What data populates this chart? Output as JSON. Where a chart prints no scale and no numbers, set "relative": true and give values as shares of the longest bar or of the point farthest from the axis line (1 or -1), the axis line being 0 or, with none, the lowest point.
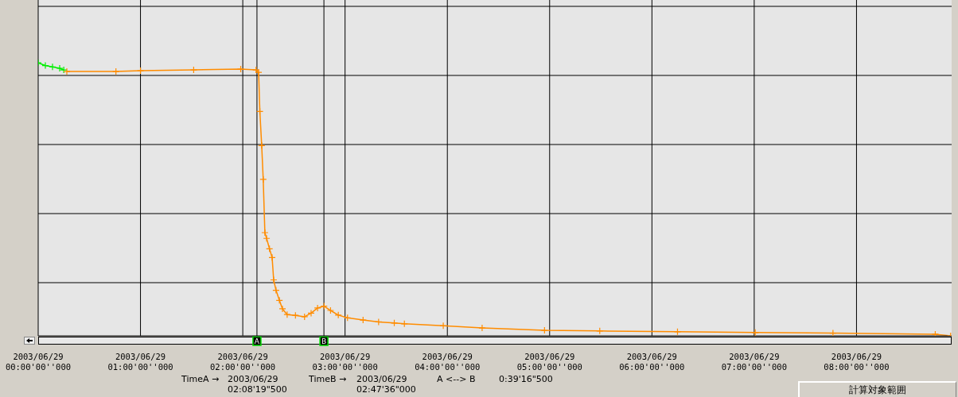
{
  "chart_data": {
    "type": "line",
    "relative": true,
    "xlim": [
      "2003-06-29T00:00",
      "2003-06-29T08:55:48"
    ],
    "xticks": [
      {
        "value": "2003-06-29T00:00",
        "label": "2003/06/29\n00:00'00''000"
      },
      {
        "value": "2003-06-29T01:00",
        "label": "2003/06/29\n01:00'00''000"
      },
      {
        "value": "2003-06-29T02:00",
        "label": "2003/06/29\n02:00'00''000"
      },
      {
        "value": "2003-06-29T03:00",
        "label": "2003/06/29\n03:00'00''000"
      },
      {
        "value": "2003-06-29T04:00",
        "label": "2003/06/29\n04:00'00''000"
      },
      {
        "value": "2003-06-29T05:00",
        "label": "2003/06/29\n05:00'00''000"
      },
      {
        "value": "2003-06-29T06:00",
        "label": "2003/06/29\n06:00'00''000"
      },
      {
        "value": "2003-06-29T07:00",
        "label": "2003/06/29\n07:00'00''000"
      },
      {
        "value": "2003-06-29T08:00",
        "label": "2003/06/29\n08:00'00''000"
      }
    ],
    "grid": true,
    "marker": "cross",
    "line_style": "solid",
    "series": [
      {
        "color": "#00ee00",
        "x": [
          "2003-06-29T00:00:00",
          "2003-06-29T00:04:12",
          "2003-06-29T00:08:24",
          "2003-06-29T00:12:36",
          "2003-06-29T00:15:00"
        ],
        "values": [
          1.0,
          0.99,
          0.985,
          0.98,
          0.974
        ]
      },
      {
        "color": "#ff8c00",
        "x": [
          "2003-06-29T00:16:48",
          "2003-06-29T00:45:36",
          "2003-06-29T01:00:00",
          "2003-06-29T01:31:12",
          "2003-06-29T01:58:48",
          "2003-06-29T02:07:48",
          "2003-06-29T02:09:18",
          "2003-06-29T02:10:01",
          "2003-06-29T02:11:06",
          "2003-06-29T02:12:00",
          "2003-06-29T02:12:58",
          "2003-06-29T02:13:59",
          "2003-06-29T02:15:40",
          "2003-06-29T02:17:13",
          "2003-06-29T02:18:07",
          "2003-06-29T02:19:30",
          "2003-06-29T02:21:29",
          "2003-06-29T02:23:17",
          "2003-06-29T02:26:02",
          "2003-06-29T02:30:54",
          "2003-06-29T02:36:14",
          "2003-06-29T02:40:05",
          "2003-06-29T02:43:52",
          "2003-06-29T02:47:42",
          "2003-06-29T02:51:29",
          "2003-06-29T02:56:02",
          "2003-06-29T03:01:26",
          "2003-06-29T03:10:34",
          "2003-06-29T03:19:41",
          "2003-06-29T03:28:52",
          "2003-06-29T03:34:48",
          "2003-06-29T03:57:36",
          "2003-06-29T04:20:24",
          "2003-06-29T04:57:00",
          "2003-06-29T05:29:24",
          "2003-06-29T06:15:00",
          "2003-06-29T07:00:36",
          "2003-06-29T07:46:12",
          "2003-06-29T08:46:12",
          "2003-06-29T08:55:12"
        ],
        "values": [
          0.968,
          0.968,
          0.971,
          0.974,
          0.977,
          0.974,
          0.965,
          0.822,
          0.697,
          0.573,
          0.378,
          0.357,
          0.319,
          0.287,
          0.205,
          0.167,
          0.13,
          0.099,
          0.078,
          0.075,
          0.07,
          0.083,
          0.102,
          0.109,
          0.093,
          0.076,
          0.066,
          0.058,
          0.051,
          0.047,
          0.044,
          0.037,
          0.029,
          0.02,
          0.018,
          0.015,
          0.012,
          0.01,
          0.006,
          0
        ]
      }
    ],
    "ref_lines": [
      {
        "axis": "x",
        "value": "2003-06-29T02:08:19.500",
        "label": "A",
        "color": "#000000"
      },
      {
        "axis": "x",
        "value": "2003-06-29T02:47:36",
        "label": "B",
        "color": "#000000"
      }
    ],
    "annotations": [
      "TimeA →",
      "2003/06/29\n02:08'19\"500",
      "TimeB →",
      "2003/06/29\n02:47'36\"000",
      "A <--> B",
      "0:39'16\"500",
      "計算対象範囲"
    ]
  }
}
